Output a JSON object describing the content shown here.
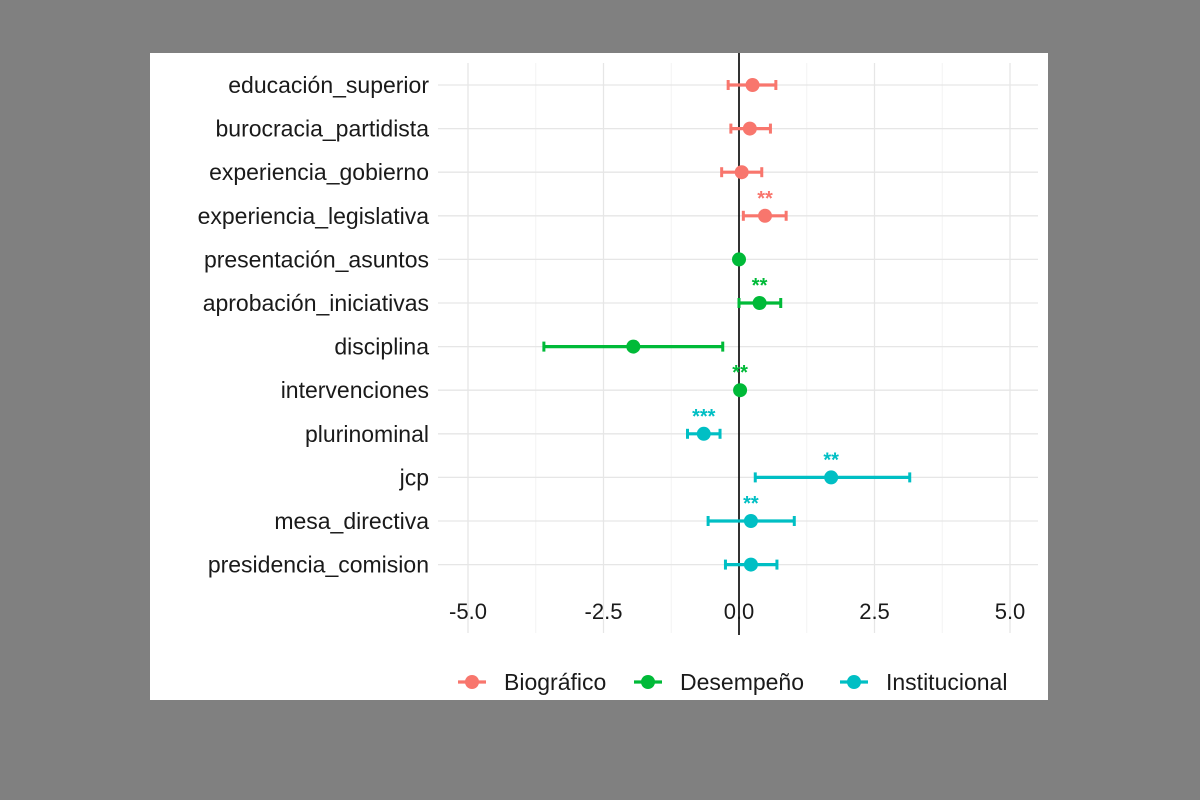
{
  "chart_data": {
    "type": "scatter",
    "subtype": "coefficient-plot",
    "xlim": [
      -5.0,
      5.0
    ],
    "x_ticks": [
      "-5.0",
      "-2.5",
      "0.0",
      "2.5",
      "5.0"
    ],
    "x_tick_values": [
      -5.0,
      -2.5,
      0.0,
      2.5,
      5.0
    ],
    "vertical_reference_line": 0.0,
    "grid": true,
    "legend_position": "bottom",
    "series": [
      {
        "name": "Biográfico",
        "color": "#F8766D"
      },
      {
        "name": "Desempeño",
        "color": "#00BA38"
      },
      {
        "name": "Institucional",
        "color": "#00BFC4"
      }
    ],
    "points": [
      {
        "label": "educación_superior",
        "group": "Biográfico",
        "estimate": 0.25,
        "low": -0.2,
        "high": 0.68,
        "stars": ""
      },
      {
        "label": "burocracia_partidista",
        "group": "Biográfico",
        "estimate": 0.2,
        "low": -0.15,
        "high": 0.58,
        "stars": ""
      },
      {
        "label": "experiencia_gobierno",
        "group": "Biográfico",
        "estimate": 0.05,
        "low": -0.32,
        "high": 0.42,
        "stars": ""
      },
      {
        "label": "experiencia_legislativa",
        "group": "Biográfico",
        "estimate": 0.48,
        "low": 0.08,
        "high": 0.87,
        "stars": "**"
      },
      {
        "label": "presentación_asuntos",
        "group": "Desempeño",
        "estimate": 0.0,
        "low": -0.02,
        "high": 0.02,
        "stars": ""
      },
      {
        "label": "aprobación_iniciativas",
        "group": "Desempeño",
        "estimate": 0.38,
        "low": 0.0,
        "high": 0.77,
        "stars": "**"
      },
      {
        "label": "disciplina",
        "group": "Desempeño",
        "estimate": -1.95,
        "low": -3.6,
        "high": -0.3,
        "stars": ""
      },
      {
        "label": "intervenciones",
        "group": "Desempeño",
        "estimate": 0.02,
        "low": 0.0,
        "high": 0.04,
        "stars": "**"
      },
      {
        "label": "plurinominal",
        "group": "Institucional",
        "estimate": -0.65,
        "low": -0.95,
        "high": -0.35,
        "stars": "***"
      },
      {
        "label": "jcp",
        "group": "Institucional",
        "estimate": 1.7,
        "low": 0.3,
        "high": 3.15,
        "stars": "**"
      },
      {
        "label": "mesa_directiva",
        "group": "Institucional",
        "estimate": 0.22,
        "low": -0.57,
        "high": 1.02,
        "stars": "**"
      },
      {
        "label": "presidencia_comision",
        "group": "Institucional",
        "estimate": 0.22,
        "low": -0.25,
        "high": 0.7,
        "stars": ""
      }
    ]
  }
}
